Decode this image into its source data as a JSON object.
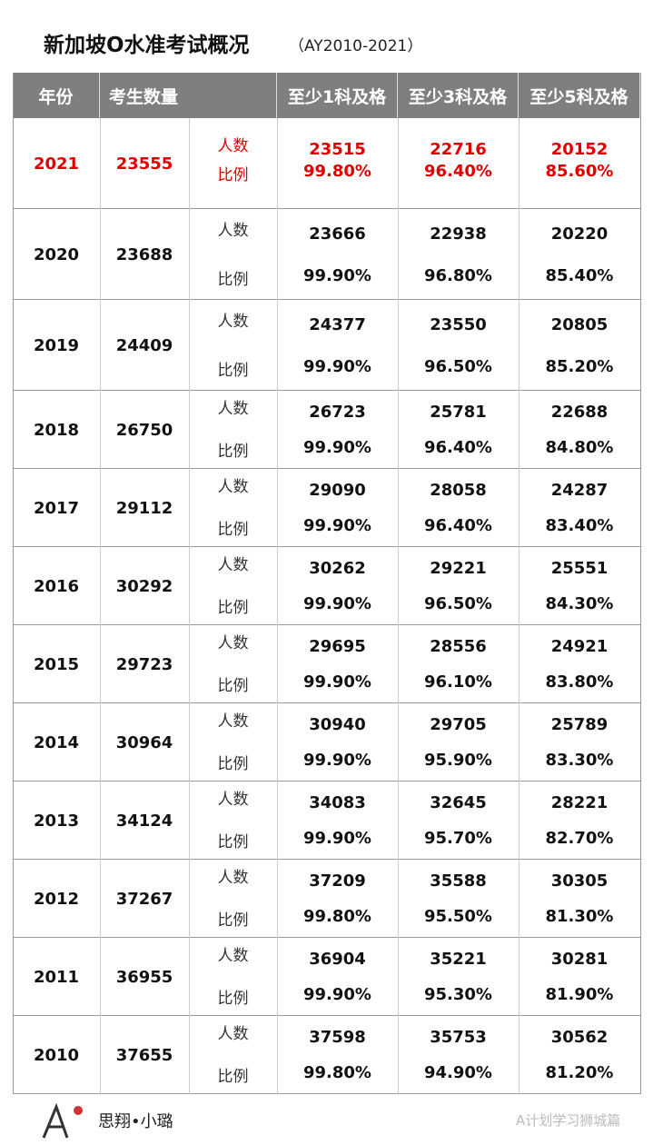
{
  "header": {
    "title": "新加坡O水准考试概况",
    "subtitle": "（AY2010-2021）"
  },
  "table": {
    "columns": [
      "年份",
      "考生数量",
      "至少1科及格",
      "至少3科及格",
      "至少5科及格"
    ],
    "row_labels": [
      "人数",
      "比例"
    ],
    "rows": [
      {
        "year": "2021",
        "candidates": "23555",
        "counts": [
          "23515",
          "22716",
          "20152"
        ],
        "rates": [
          "99.80%",
          "96.40%",
          "85.60%"
        ]
      },
      {
        "year": "2020",
        "candidates": "23688",
        "counts": [
          "23666",
          "22938",
          "20220"
        ],
        "rates": [
          "99.90%",
          "96.80%",
          "85.40%"
        ]
      },
      {
        "year": "2019",
        "candidates": "24409",
        "counts": [
          "24377",
          "23550",
          "20805"
        ],
        "rates": [
          "99.90%",
          "96.50%",
          "85.20%"
        ]
      },
      {
        "year": "2018",
        "candidates": "26750",
        "counts": [
          "26723",
          "25781",
          "22688"
        ],
        "rates": [
          "99.90%",
          "96.40%",
          "84.80%"
        ]
      },
      {
        "year": "2017",
        "candidates": "29112",
        "counts": [
          "29090",
          "28058",
          "24287"
        ],
        "rates": [
          "99.90%",
          "96.40%",
          "83.40%"
        ]
      },
      {
        "year": "2016",
        "candidates": "30292",
        "counts": [
          "30262",
          "29221",
          "25551"
        ],
        "rates": [
          "99.90%",
          "96.50%",
          "84.30%"
        ]
      },
      {
        "year": "2015",
        "candidates": "29723",
        "counts": [
          "29695",
          "28556",
          "24921"
        ],
        "rates": [
          "99.90%",
          "96.10%",
          "83.80%"
        ]
      },
      {
        "year": "2014",
        "candidates": "30964",
        "counts": [
          "30940",
          "29705",
          "25789"
        ],
        "rates": [
          "99.90%",
          "95.90%",
          "83.30%"
        ]
      },
      {
        "year": "2013",
        "candidates": "34124",
        "counts": [
          "34083",
          "32645",
          "28221"
        ],
        "rates": [
          "99.90%",
          "95.70%",
          "82.70%"
        ]
      },
      {
        "year": "2012",
        "candidates": "37267",
        "counts": [
          "37209",
          "35588",
          "30305"
        ],
        "rates": [
          "99.80%",
          "95.50%",
          "81.30%"
        ]
      },
      {
        "year": "2011",
        "candidates": "36955",
        "counts": [
          "36904",
          "35221",
          "30281"
        ],
        "rates": [
          "99.90%",
          "95.30%",
          "81.90%"
        ]
      },
      {
        "year": "2010",
        "candidates": "37655",
        "counts": [
          "37598",
          "35753",
          "30562"
        ],
        "rates": [
          "99.80%",
          "94.90%",
          "81.20%"
        ]
      }
    ]
  },
  "footer": {
    "author": "思翔•小璐",
    "watermark": "A计划学习狮城篇"
  }
}
